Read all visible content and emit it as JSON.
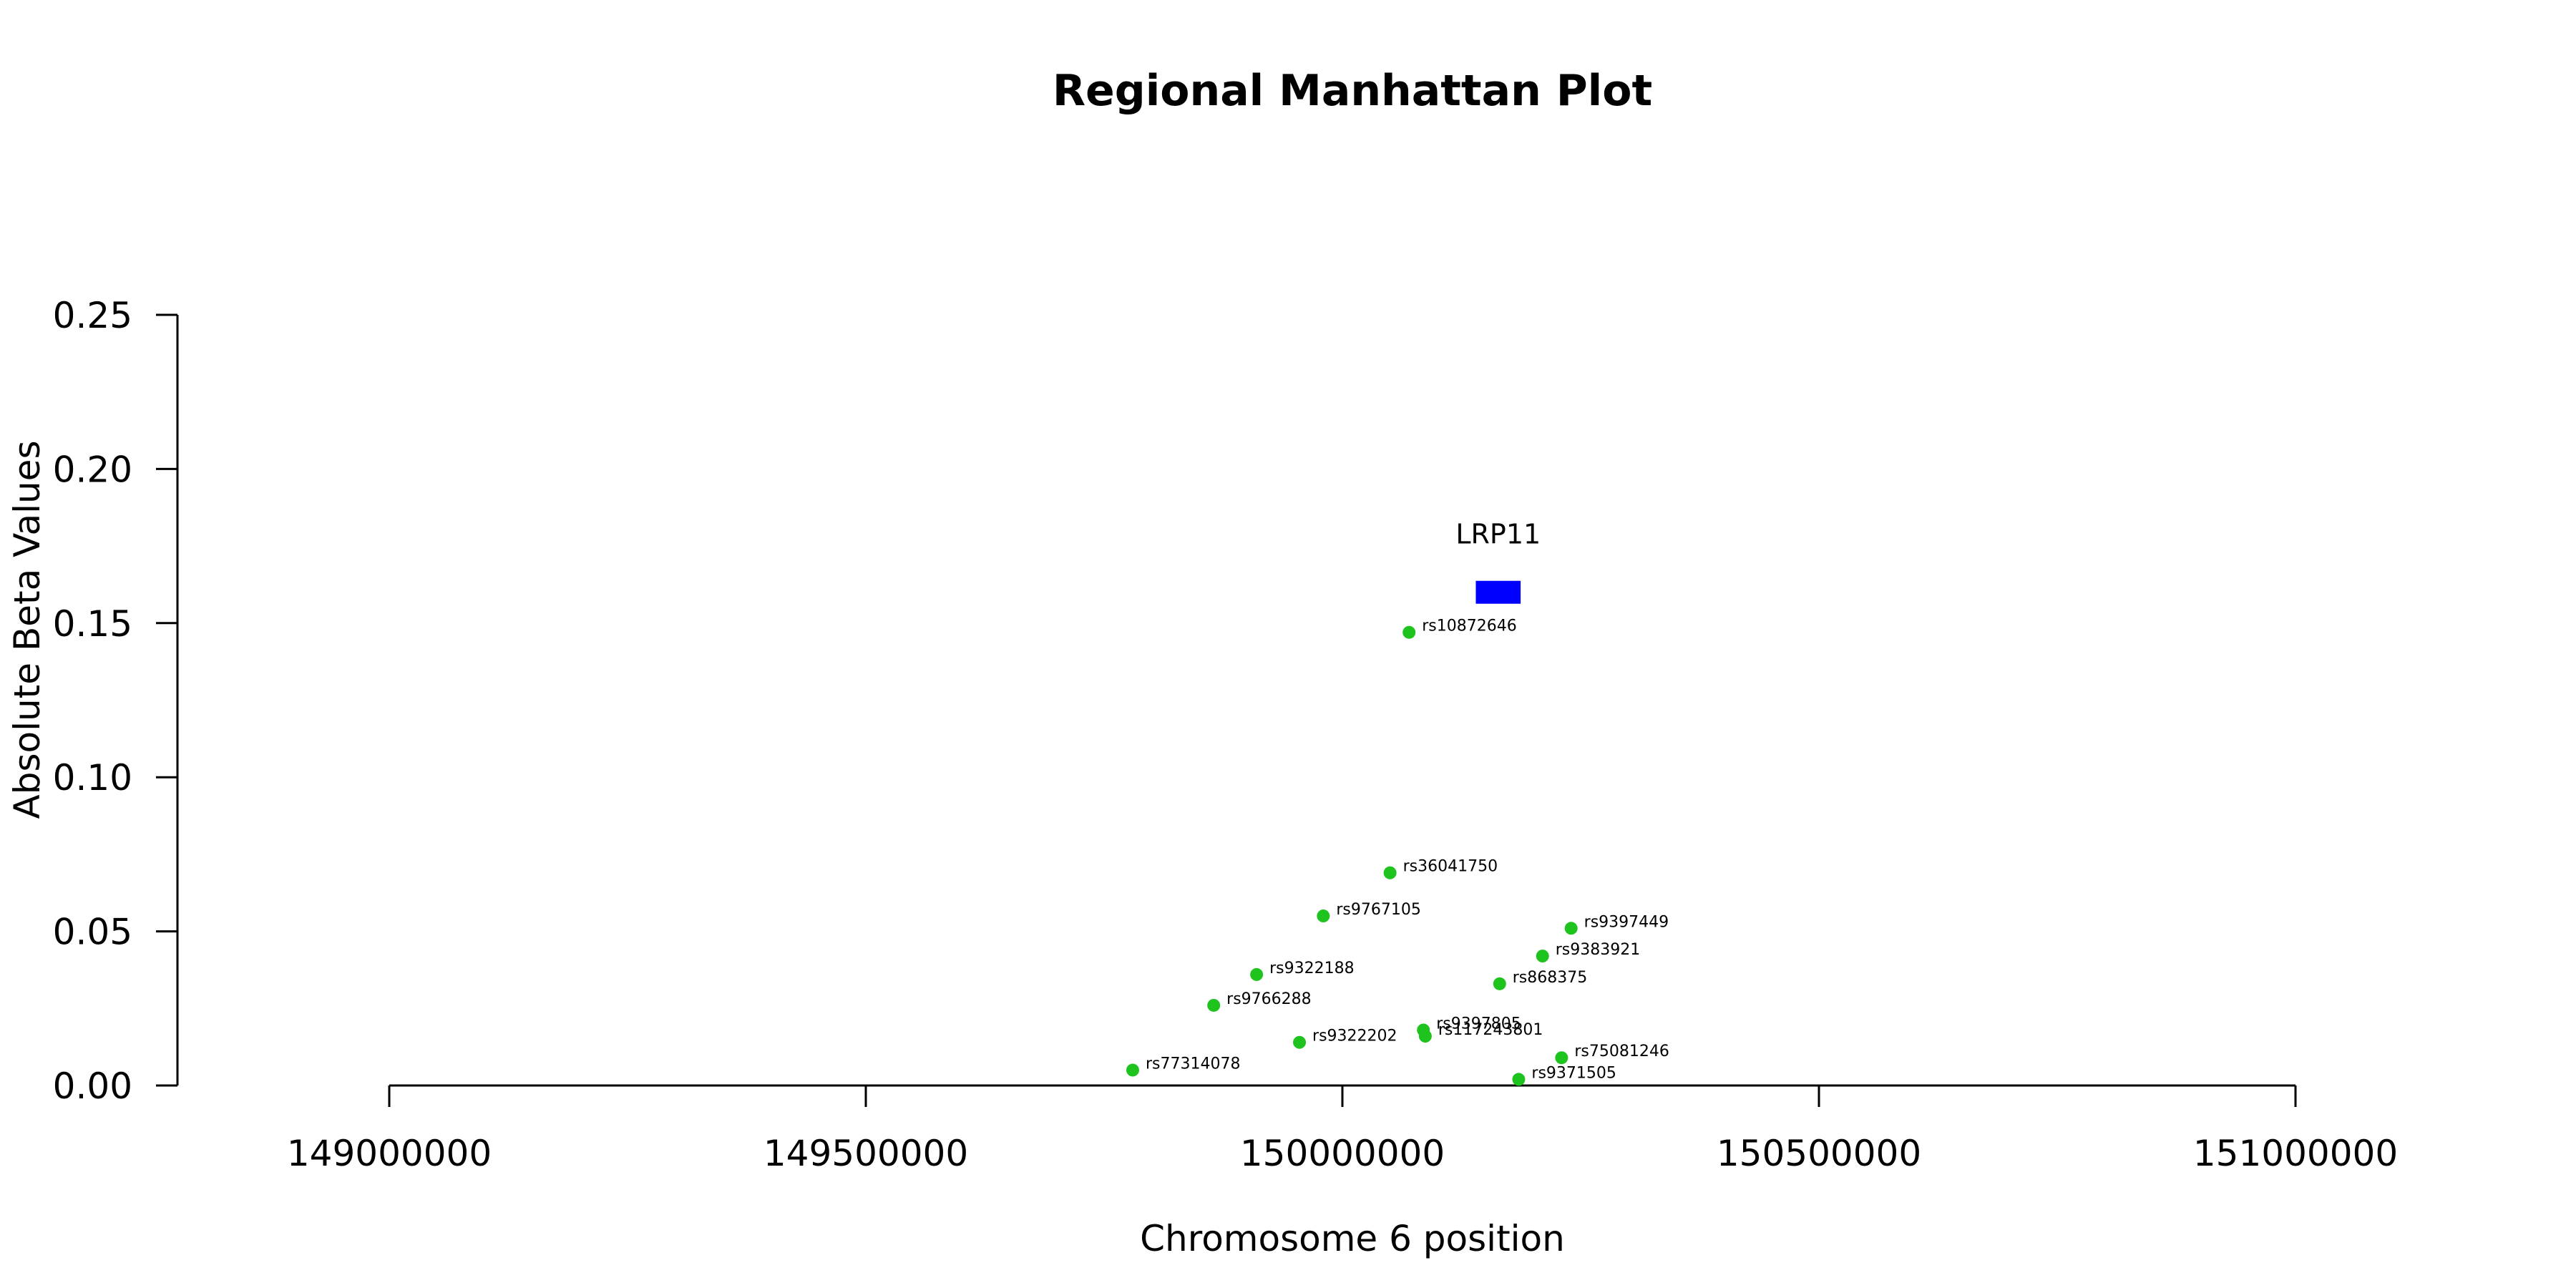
{
  "chart_data": {
    "type": "scatter",
    "title": "Regional Manhattan Plot",
    "xlabel": "Chromosome 6 position",
    "ylabel": "Absolute Beta Values",
    "xlim": [
      149000000,
      151000000
    ],
    "ylim": [
      0,
      0.25
    ],
    "x_ticks": [
      "149000000",
      "149500000",
      "150000000",
      "150500000",
      "151000000"
    ],
    "y_ticks": [
      "0.00",
      "0.05",
      "0.10",
      "0.15",
      "0.20",
      "0.25"
    ],
    "grid": false,
    "point_color": "#1ec31e",
    "points": [
      {
        "label": "rs10872646",
        "x": 150070000,
        "y": 0.147
      },
      {
        "label": "rs36041750",
        "x": 150050000,
        "y": 0.069
      },
      {
        "label": "rs9767105",
        "x": 149980000,
        "y": 0.055
      },
      {
        "label": "rs9397449",
        "x": 150240000,
        "y": 0.051
      },
      {
        "label": "rs9383921",
        "x": 150210000,
        "y": 0.042
      },
      {
        "label": "rs9322188",
        "x": 149910000,
        "y": 0.036
      },
      {
        "label": "rs868375",
        "x": 150165000,
        "y": 0.033
      },
      {
        "label": "rs9766288",
        "x": 149865000,
        "y": 0.026
      },
      {
        "label": "rs9397805",
        "x": 150085000,
        "y": 0.018
      },
      {
        "label": "rs117243801",
        "x": 150087000,
        "y": 0.016
      },
      {
        "label": "rs9322202",
        "x": 149955000,
        "y": 0.014
      },
      {
        "label": "rs75081246",
        "x": 150230000,
        "y": 0.009
      },
      {
        "label": "rs77314078",
        "x": 149780000,
        "y": 0.005
      },
      {
        "label": "rs9371505",
        "x": 150185000,
        "y": 0.002
      }
    ],
    "gene": {
      "name": "LRP11",
      "start": 150140000,
      "end": 150187000,
      "y": 0.16,
      "color": "#0000ff"
    }
  }
}
